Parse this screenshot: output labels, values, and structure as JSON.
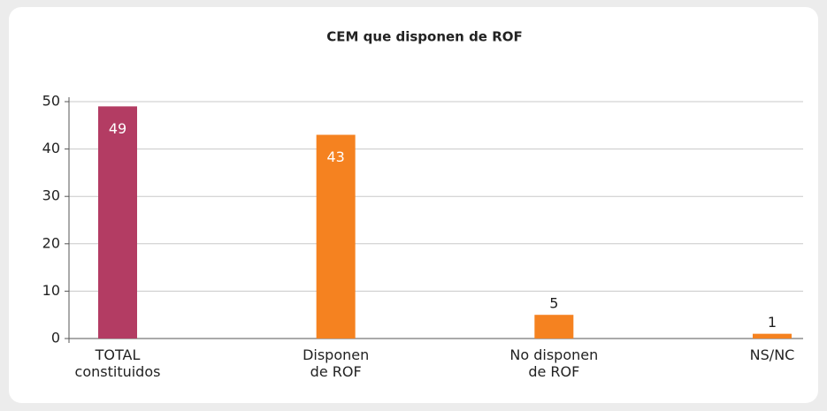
{
  "chart_data": {
    "type": "bar",
    "title": "CEM que disponen de ROF",
    "categories": [
      "TOTAL\nconstituidos",
      "Disponen\nde ROF",
      "No disponen\nde ROF",
      "NS/NC"
    ],
    "values": [
      49,
      43,
      5,
      1
    ],
    "colors": [
      "#b33c63",
      "#f58220",
      "#f58220",
      "#f58220"
    ],
    "ylim": [
      0,
      50
    ],
    "yticks": [
      0,
      10,
      20,
      30,
      40,
      50
    ],
    "grid": true
  }
}
